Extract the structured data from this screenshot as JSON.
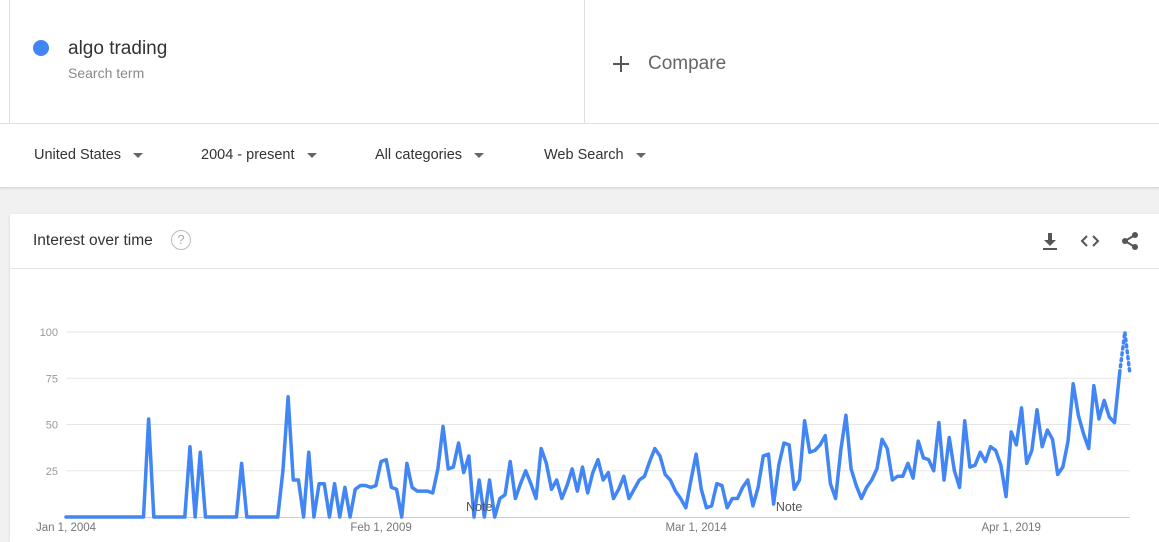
{
  "search_term": {
    "name": "algo trading",
    "subtitle": "Search term",
    "color": "#4285f4"
  },
  "compare": {
    "label": "Compare"
  },
  "filters": {
    "region": "United States",
    "time_range": "2004 - present",
    "category": "All categories",
    "search_type": "Web Search"
  },
  "card": {
    "title": "Interest over time"
  },
  "icons": {
    "help": "help-icon",
    "download": "download-icon",
    "embed": "embed-icon",
    "share": "share-icon",
    "dropdown": "caret-down-icon"
  },
  "chart_data": {
    "type": "line",
    "y_ticks": [
      "100",
      "75",
      "50",
      "25"
    ],
    "ylim": [
      0,
      100
    ],
    "grid": true,
    "x_tick_labels": [
      {
        "label": "Jan 1, 2004",
        "index": 0
      },
      {
        "label": "Feb 1, 2009",
        "index": 61
      },
      {
        "label": "Mar 1, 2014",
        "index": 122
      },
      {
        "label": "Apr 1, 2019",
        "index": 183
      }
    ],
    "notes": [
      {
        "label": "Note",
        "index": 80
      },
      {
        "label": "Note",
        "index": 140
      }
    ],
    "partial_data_points": 2,
    "series": [
      {
        "color": "#4285f4",
        "values": [
          0,
          0,
          0,
          0,
          0,
          0,
          0,
          0,
          0,
          0,
          0,
          0,
          0,
          0,
          0,
          0,
          53,
          0,
          0,
          0,
          0,
          0,
          0,
          0,
          38,
          0,
          35,
          0,
          0,
          0,
          0,
          0,
          0,
          0,
          29,
          0,
          0,
          0,
          0,
          0,
          0,
          0,
          25,
          65,
          20,
          20,
          0,
          35,
          0,
          18,
          18,
          0,
          18,
          0,
          16,
          0,
          15,
          17,
          17,
          16,
          17,
          30,
          31,
          16,
          15,
          0,
          29,
          16,
          14,
          14,
          14,
          13,
          26,
          49,
          26,
          27,
          40,
          24,
          33,
          0,
          20,
          0,
          20,
          0,
          10,
          12,
          30,
          10,
          18,
          25,
          18,
          10,
          37,
          29,
          15,
          20,
          10,
          17,
          26,
          14,
          27,
          13,
          24,
          31,
          20,
          24,
          10,
          15,
          22,
          10,
          15,
          20,
          22,
          30,
          37,
          33,
          23,
          20,
          14,
          10,
          5,
          20,
          34,
          15,
          5,
          6,
          18,
          17,
          5,
          10,
          10,
          16,
          20,
          6,
          16,
          33,
          34,
          7,
          28,
          40,
          39,
          15,
          20,
          52,
          35,
          36,
          39,
          44,
          18,
          10,
          36,
          55,
          26,
          17,
          10,
          16,
          20,
          26,
          42,
          37,
          20,
          22,
          22,
          29,
          21,
          41,
          32,
          31,
          25,
          51,
          20,
          43,
          25,
          16,
          52,
          27,
          28,
          35,
          30,
          38,
          36,
          28,
          11,
          46,
          39,
          59,
          29,
          36,
          58,
          38,
          47,
          42,
          23,
          27,
          41,
          72,
          55,
          45,
          37,
          71,
          53,
          63,
          54,
          51,
          78,
          100,
          77
        ]
      }
    ]
  }
}
